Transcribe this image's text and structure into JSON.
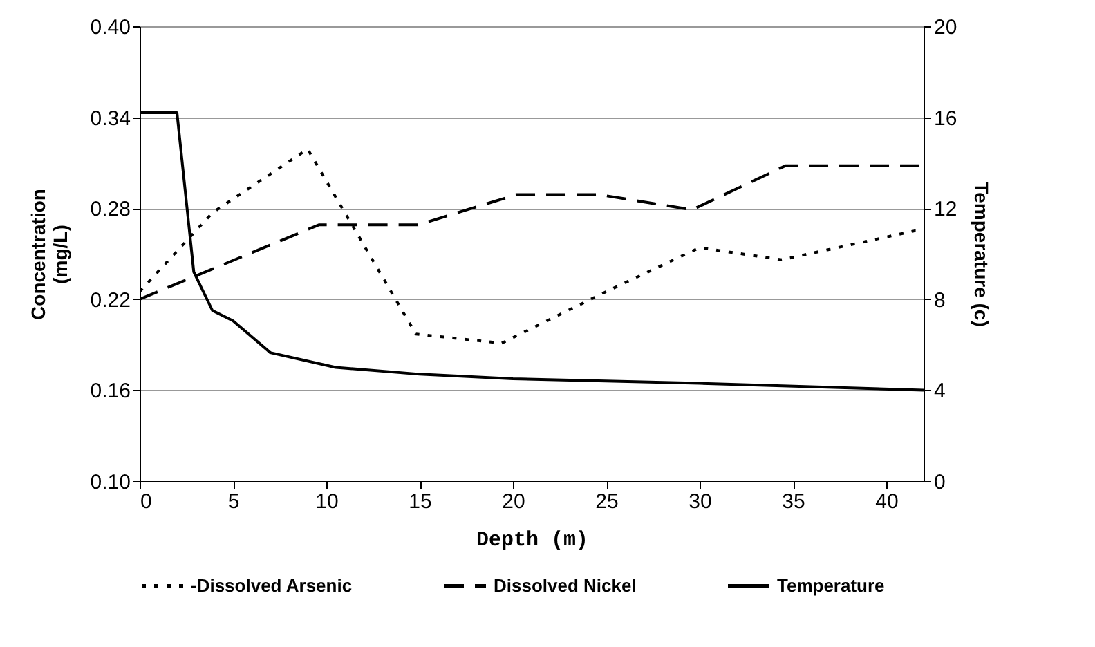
{
  "chart_data": {
    "type": "line",
    "xlabel": "Depth (m)",
    "ylabel": "Concentration (mg/L)",
    "y2label": "Temperature (c)",
    "xlim": [
      0,
      42
    ],
    "xticks": [
      0,
      5,
      10,
      15,
      20,
      25,
      30,
      35,
      40
    ],
    "ylim": [
      0.1,
      0.4
    ],
    "yticks": [
      {
        "value": 0.1,
        "label": "0.10"
      },
      0.16,
      0.22,
      0.28,
      0.34,
      {
        "value": 0.4,
        "label": "0.40"
      }
    ],
    "y2lim": [
      0,
      20
    ],
    "y2ticks": [
      0,
      4,
      8,
      12,
      16,
      20
    ],
    "grid": "y",
    "legend": "bottom",
    "series": [
      {
        "name": "-Dissolved Arsenic",
        "color": "#000000",
        "line_style": "dotted",
        "x": [
          0,
          3.9,
          9,
          14.8,
          19.4,
          25,
          30,
          34.4,
          41.5,
          42
        ],
        "values": [
          0.225,
          0.277,
          0.319,
          0.197,
          0.191,
          0.225,
          0.254,
          0.246,
          0.265,
          0.265
        ]
      },
      {
        "name": "Dissolved Nickel",
        "color": "#000000",
        "line_style": "dashed",
        "x": [
          0,
          9.6,
          14.9,
          20.2,
          24.6,
          29.6,
          34.6,
          42
        ],
        "values": [
          0.22,
          0.269,
          0.269,
          0.289,
          0.289,
          0.279,
          0.308,
          0.308
        ]
      },
      {
        "name": "Temperature",
        "color": "#000000",
        "line_style": "solid",
        "axis": "y2",
        "x": [
          0,
          2,
          2.9,
          3.9,
          5,
          7,
          10.5,
          15,
          20,
          30,
          42
        ],
        "values": [
          16.2,
          16.2,
          9.2,
          7.5,
          7.05,
          5.65,
          5.0,
          4.7,
          4.5,
          4.3,
          4.0
        ]
      }
    ]
  }
}
